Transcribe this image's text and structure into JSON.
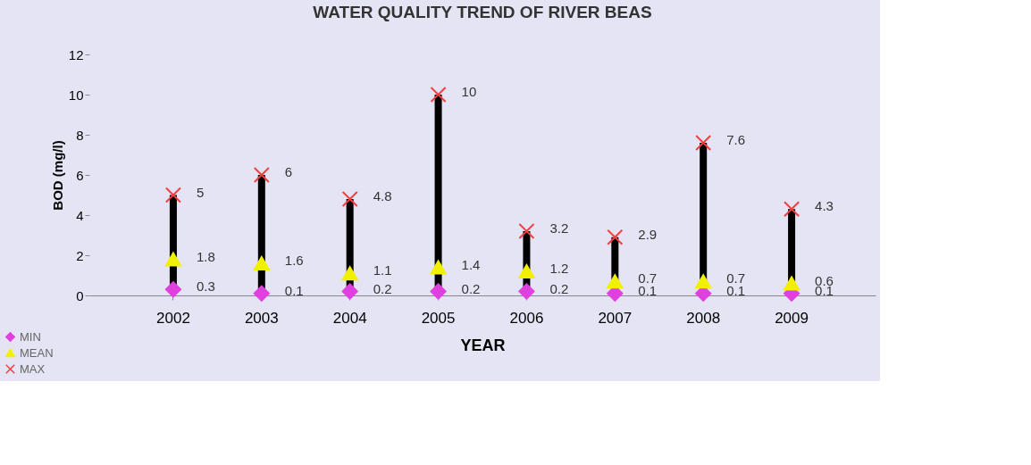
{
  "chart_data": {
    "type": "scatter",
    "title": "WATER QUALITY TREND OF RIVER BEAS",
    "xlabel": "YEAR",
    "ylabel": "BOD (mg/l)",
    "categories": [
      "2002",
      "2003",
      "2004",
      "2005",
      "2006",
      "2007",
      "2008",
      "2009"
    ],
    "ylim": [
      0,
      12
    ],
    "yticks": [
      0,
      2,
      4,
      6,
      8,
      10,
      12
    ],
    "grid": false,
    "legend": "bottom left",
    "data_labels": true,
    "series": [
      {
        "type": "bar",
        "color": "#000000",
        "base": [
          0.3,
          0.1,
          0.2,
          0.2,
          0.2,
          0.1,
          0.1,
          0.1
        ],
        "values": [
          4.7,
          5.9,
          4.6,
          9.8,
          3.0,
          2.8,
          7.5,
          4.2
        ],
        "value_labels": [
          null,
          null,
          null,
          null,
          null,
          null,
          null,
          null
        ]
      },
      {
        "name": "MIN",
        "color": "#e040e0",
        "marker": "diamond",
        "values": [
          0.3,
          0.1,
          0.2,
          0.2,
          0.2,
          0.1,
          0.1,
          0.1
        ]
      },
      {
        "name": "MEAN",
        "color": "#f0f000",
        "marker": "triangle",
        "values": [
          1.8,
          1.6,
          1.1,
          1.4,
          1.2,
          0.7,
          0.7,
          0.6
        ]
      },
      {
        "name": "MAX",
        "color": "#f04040",
        "marker": "cross",
        "values": [
          5,
          6,
          4.8,
          10,
          3.2,
          2.9,
          7.6,
          4.3
        ]
      }
    ]
  }
}
